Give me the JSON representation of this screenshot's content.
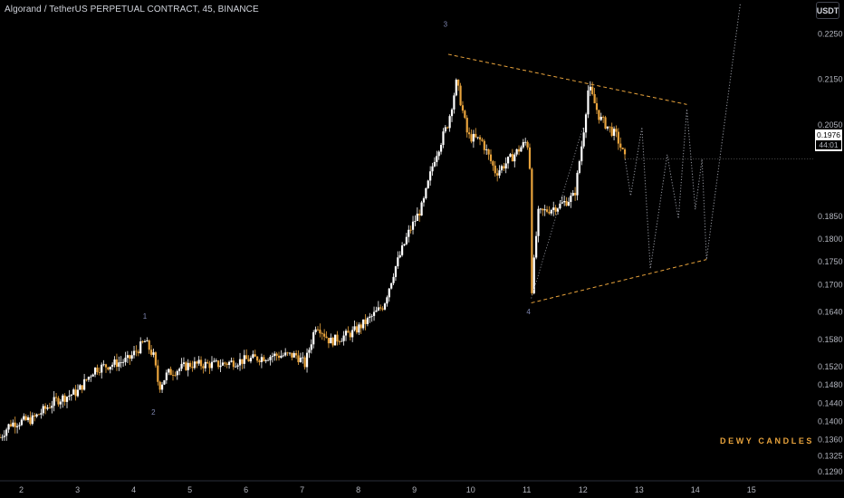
{
  "header": {
    "title": "Algorand / TetherUS PERPETUAL CONTRACT, 45, BINANCE",
    "currency_button": "USDT"
  },
  "price_badge": {
    "price": "0.1976",
    "countdown": "44:01"
  },
  "watermark": "DEWY CANDLES",
  "colors": {
    "background": "#000000",
    "candle_up": "#ffffff",
    "candle_down": "#e8a33c",
    "projection": "#9598a1",
    "triangle": "#e8a33c",
    "wave_label": "#7e86b0"
  },
  "chart_data": {
    "type": "candlestick",
    "y_axis": {
      "min": 0.127,
      "max": 0.232,
      "ticks": [
        "0.2250",
        "0.2150",
        "0.2050",
        "0.1850",
        "0.1800",
        "0.1750",
        "0.1700",
        "0.1640",
        "0.1580",
        "0.1520",
        "0.1480",
        "0.1440",
        "0.1400",
        "0.1360",
        "0.1325",
        "0.1290"
      ]
    },
    "x_axis": {
      "ticks": [
        {
          "label": "2",
          "day": 2
        },
        {
          "label": "3",
          "day": 3
        },
        {
          "label": "4",
          "day": 4
        },
        {
          "label": "5",
          "day": 5
        },
        {
          "label": "6",
          "day": 6
        },
        {
          "label": "7",
          "day": 7
        },
        {
          "label": "8",
          "day": 8
        },
        {
          "label": "9",
          "day": 9
        },
        {
          "label": "10",
          "day": 10
        },
        {
          "label": "11",
          "day": 11
        },
        {
          "label": "12",
          "day": 12
        },
        {
          "label": "13",
          "day": 13
        },
        {
          "label": "14",
          "day": 14
        },
        {
          "label": "15",
          "day": 15
        }
      ],
      "min": 1.62,
      "max": 16.1
    },
    "price_path": [
      [
        1.62,
        0.1365
      ],
      [
        1.8,
        0.1395
      ],
      [
        2.2,
        0.1405
      ],
      [
        2.6,
        0.1445
      ],
      [
        3.0,
        0.1465
      ],
      [
        3.3,
        0.1515
      ],
      [
        3.6,
        0.1525
      ],
      [
        3.9,
        0.1535
      ],
      [
        4.2,
        0.1575
      ],
      [
        4.35,
        0.1545
      ],
      [
        4.45,
        0.1475
      ],
      [
        4.6,
        0.1505
      ],
      [
        5.0,
        0.1525
      ],
      [
        5.5,
        0.1525
      ],
      [
        6.0,
        0.1535
      ],
      [
        6.5,
        0.1545
      ],
      [
        6.9,
        0.1545
      ],
      [
        7.05,
        0.1525
      ],
      [
        7.25,
        0.1615
      ],
      [
        7.5,
        0.1575
      ],
      [
        7.9,
        0.1595
      ],
      [
        8.2,
        0.1625
      ],
      [
        8.45,
        0.1655
      ],
      [
        8.65,
        0.1735
      ],
      [
        8.9,
        0.1815
      ],
      [
        9.15,
        0.1875
      ],
      [
        9.35,
        0.1975
      ],
      [
        9.6,
        0.2055
      ],
      [
        9.75,
        0.2145
      ],
      [
        9.95,
        0.2025
      ],
      [
        10.2,
        0.2015
      ],
      [
        10.45,
        0.1945
      ],
      [
        10.7,
        0.1975
      ],
      [
        11.0,
        0.2015
      ],
      [
        11.05,
        0.1985
      ],
      [
        11.08,
        0.1675
      ],
      [
        11.2,
        0.1855
      ],
      [
        11.6,
        0.1875
      ],
      [
        11.85,
        0.1895
      ],
      [
        12.0,
        0.2025
      ],
      [
        12.1,
        0.2135
      ],
      [
        12.3,
        0.2065
      ],
      [
        12.6,
        0.2025
      ],
      [
        12.75,
        0.1975
      ]
    ],
    "projection_path": [
      [
        12.75,
        0.1975
      ],
      [
        12.85,
        0.1895
      ],
      [
        13.05,
        0.2045
      ],
      [
        13.2,
        0.1735
      ],
      [
        13.5,
        0.1985
      ],
      [
        13.7,
        0.1845
      ],
      [
        13.85,
        0.2085
      ],
      [
        14.0,
        0.1865
      ],
      [
        14.12,
        0.1975
      ],
      [
        14.2,
        0.1755
      ],
      [
        14.8,
        0.2315
      ]
    ],
    "triangle": {
      "upper": [
        [
          9.6,
          0.2205
        ],
        [
          13.85,
          0.2095
        ]
      ],
      "lower": [
        [
          11.08,
          0.166
        ],
        [
          14.2,
          0.1755
        ]
      ]
    },
    "wave_labels": [
      {
        "label": "1",
        "x": 4.2,
        "y": 0.1625
      },
      {
        "label": "2",
        "x": 4.35,
        "y": 0.1415
      },
      {
        "label": "3",
        "x": 9.55,
        "y": 0.2265
      },
      {
        "label": "4",
        "x": 11.03,
        "y": 0.1635
      }
    ],
    "current_price": 0.1976
  }
}
